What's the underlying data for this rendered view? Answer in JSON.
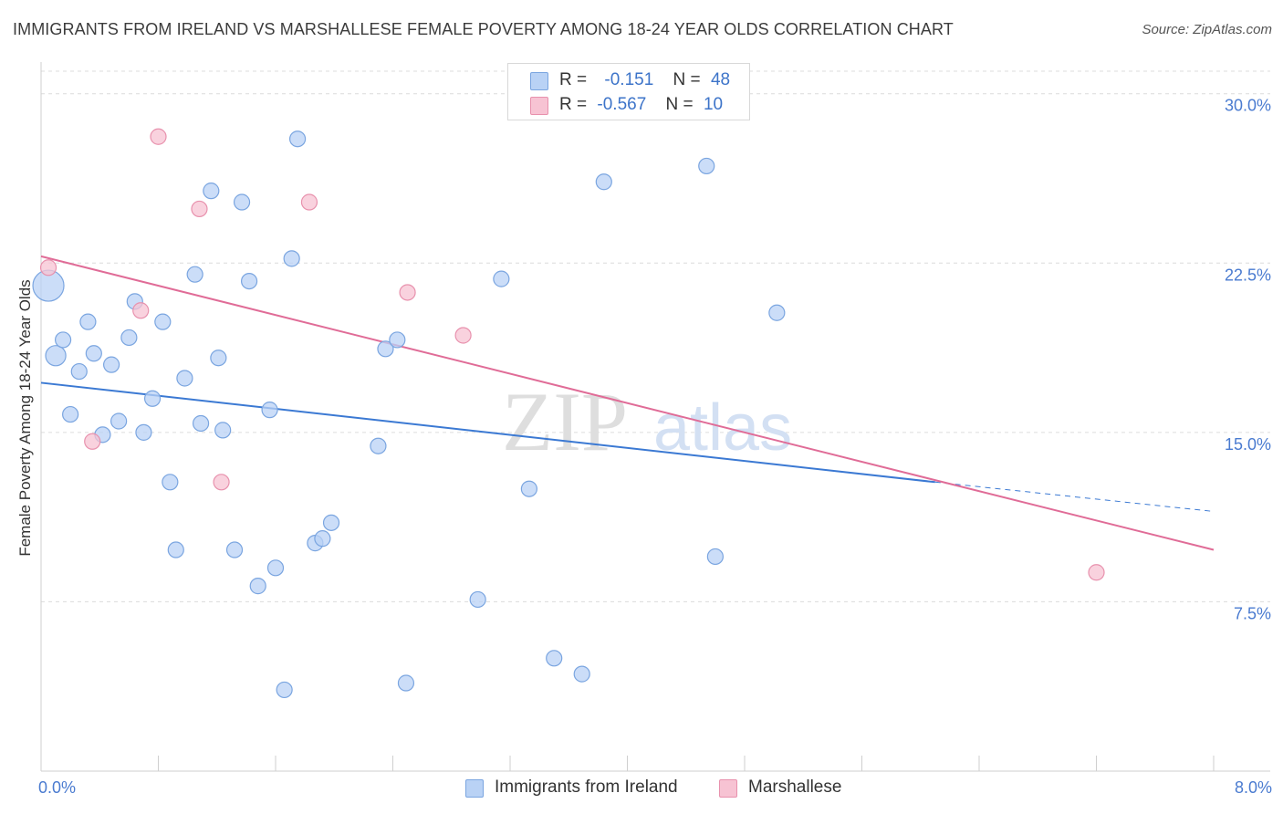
{
  "title": "IMMIGRANTS FROM IRELAND VS MARSHALLESE FEMALE POVERTY AMONG 18-24 YEAR OLDS CORRELATION CHART",
  "source": "Source: ZipAtlas.com",
  "watermark": {
    "zip": "ZIP",
    "atlas": "atlas"
  },
  "colors": {
    "blue_fill": "#b9d2f5",
    "blue_stroke": "#7aa5e0",
    "blue_line": "#3b79d3",
    "pink_fill": "#f7c3d3",
    "pink_stroke": "#e891ad",
    "pink_line": "#e06c97",
    "grid": "#dcdcdc",
    "axis_label": "#4a7bd0"
  },
  "legend_top": {
    "rows": [
      {
        "r_label": "R =",
        "r_value": "-0.151",
        "n_label": "N =",
        "n_value": "48",
        "series": "blue"
      },
      {
        "r_label": "R =",
        "r_value": "-0.567",
        "n_label": "N =",
        "n_value": "10",
        "series": "pink"
      }
    ]
  },
  "legend_bottom": [
    "Immigrants from Ireland",
    "Marshallese"
  ],
  "chart_data": {
    "type": "scatter",
    "title": "IMMIGRANTS FROM IRELAND VS MARSHALLESE FEMALE POVERTY AMONG 18-24 YEAR OLDS CORRELATION CHART",
    "xlabel": "",
    "ylabel": "Female Poverty Among 18-24 Year Olds",
    "xlim": [
      0,
      8
    ],
    "ylim": [
      0,
      31
    ],
    "x_tick_labels": [
      "0.0%",
      "8.0%"
    ],
    "x_tick_values": [
      0,
      8
    ],
    "x_minor_ticks": [
      0.8,
      1.6,
      2.4,
      3.2,
      4.0,
      4.8,
      5.6,
      6.4,
      7.2
    ],
    "y_tick_labels": [
      "7.5%",
      "15.0%",
      "22.5%",
      "30.0%"
    ],
    "y_tick_values": [
      7.5,
      15.0,
      22.5,
      30.0
    ],
    "grid": true,
    "legend_position": "bottom",
    "series": [
      {
        "name": "Immigrants from Ireland",
        "color": "blue",
        "r": -0.151,
        "n": 48,
        "trend": {
          "x0": 0,
          "y0": 17.2,
          "x1": 6.1,
          "y1": 12.8,
          "dash_x1": 8,
          "dash_y1": 11.5
        },
        "points": [
          {
            "x": 0.05,
            "y": 21.5,
            "s": 2
          },
          {
            "x": 0.1,
            "y": 18.4,
            "s": 1.3
          },
          {
            "x": 0.15,
            "y": 19.1,
            "s": 1
          },
          {
            "x": 0.2,
            "y": 15.8,
            "s": 1
          },
          {
            "x": 0.26,
            "y": 17.7,
            "s": 1
          },
          {
            "x": 0.32,
            "y": 19.9,
            "s": 1
          },
          {
            "x": 0.36,
            "y": 18.5,
            "s": 1
          },
          {
            "x": 0.42,
            "y": 14.9,
            "s": 1
          },
          {
            "x": 0.48,
            "y": 18.0,
            "s": 1
          },
          {
            "x": 0.53,
            "y": 15.5,
            "s": 1
          },
          {
            "x": 0.6,
            "y": 19.2,
            "s": 1
          },
          {
            "x": 0.64,
            "y": 20.8,
            "s": 1
          },
          {
            "x": 0.7,
            "y": 15.0,
            "s": 1
          },
          {
            "x": 0.76,
            "y": 16.5,
            "s": 1
          },
          {
            "x": 0.83,
            "y": 19.9,
            "s": 1
          },
          {
            "x": 0.88,
            "y": 12.8,
            "s": 1
          },
          {
            "x": 0.92,
            "y": 9.8,
            "s": 1
          },
          {
            "x": 0.98,
            "y": 17.4,
            "s": 1
          },
          {
            "x": 1.05,
            "y": 22.0,
            "s": 1
          },
          {
            "x": 1.09,
            "y": 15.4,
            "s": 1
          },
          {
            "x": 1.16,
            "y": 25.7,
            "s": 1
          },
          {
            "x": 1.21,
            "y": 18.3,
            "s": 1
          },
          {
            "x": 1.24,
            "y": 15.1,
            "s": 1
          },
          {
            "x": 1.32,
            "y": 9.8,
            "s": 1
          },
          {
            "x": 1.37,
            "y": 25.2,
            "s": 1
          },
          {
            "x": 1.42,
            "y": 21.7,
            "s": 1
          },
          {
            "x": 1.48,
            "y": 8.2,
            "s": 1
          },
          {
            "x": 1.56,
            "y": 16.0,
            "s": 1
          },
          {
            "x": 1.6,
            "y": 9.0,
            "s": 1
          },
          {
            "x": 1.66,
            "y": 3.6,
            "s": 1
          },
          {
            "x": 1.71,
            "y": 22.7,
            "s": 1
          },
          {
            "x": 1.75,
            "y": 28.0,
            "s": 1
          },
          {
            "x": 1.87,
            "y": 10.1,
            "s": 1
          },
          {
            "x": 1.92,
            "y": 10.3,
            "s": 1
          },
          {
            "x": 1.98,
            "y": 11.0,
            "s": 1
          },
          {
            "x": 2.3,
            "y": 14.4,
            "s": 1
          },
          {
            "x": 2.35,
            "y": 18.7,
            "s": 1
          },
          {
            "x": 2.43,
            "y": 19.1,
            "s": 1
          },
          {
            "x": 2.49,
            "y": 3.9,
            "s": 1
          },
          {
            "x": 2.98,
            "y": 7.6,
            "s": 1
          },
          {
            "x": 3.14,
            "y": 21.8,
            "s": 1
          },
          {
            "x": 3.33,
            "y": 12.5,
            "s": 1
          },
          {
            "x": 3.5,
            "y": 5.0,
            "s": 1
          },
          {
            "x": 3.69,
            "y": 4.3,
            "s": 1
          },
          {
            "x": 3.84,
            "y": 26.1,
            "s": 1
          },
          {
            "x": 4.54,
            "y": 26.8,
            "s": 1
          },
          {
            "x": 4.6,
            "y": 9.5,
            "s": 1
          },
          {
            "x": 5.02,
            "y": 20.3,
            "s": 1
          }
        ]
      },
      {
        "name": "Marshallese",
        "color": "pink",
        "r": -0.567,
        "n": 10,
        "trend": {
          "x0": 0,
          "y0": 22.8,
          "x1": 8,
          "y1": 9.8
        },
        "points": [
          {
            "x": 0.05,
            "y": 22.3,
            "s": 1
          },
          {
            "x": 0.35,
            "y": 14.6,
            "s": 1
          },
          {
            "x": 0.68,
            "y": 20.4,
            "s": 1
          },
          {
            "x": 0.8,
            "y": 28.1,
            "s": 1
          },
          {
            "x": 1.08,
            "y": 24.9,
            "s": 1
          },
          {
            "x": 1.23,
            "y": 12.8,
            "s": 1
          },
          {
            "x": 1.83,
            "y": 25.2,
            "s": 1
          },
          {
            "x": 2.5,
            "y": 21.2,
            "s": 1
          },
          {
            "x": 2.88,
            "y": 19.3,
            "s": 1
          },
          {
            "x": 7.2,
            "y": 8.8,
            "s": 1
          }
        ]
      }
    ]
  }
}
